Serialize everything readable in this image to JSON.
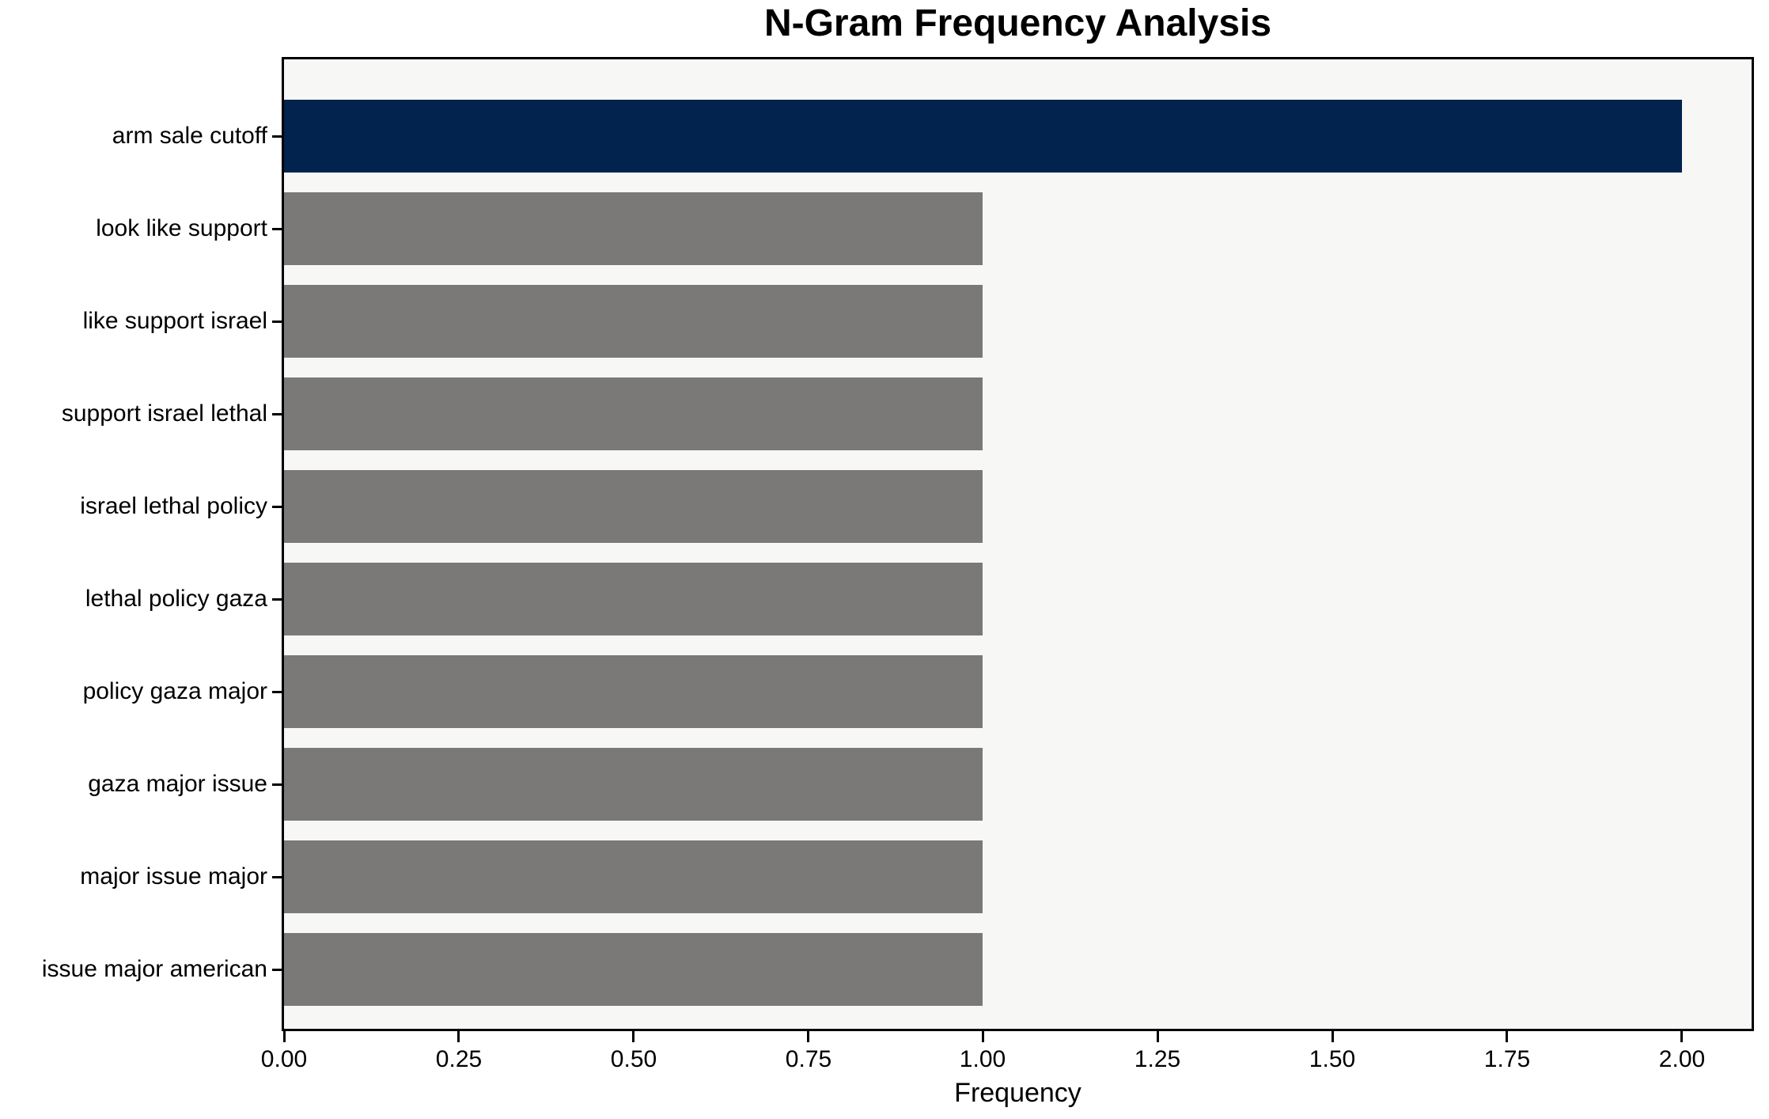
{
  "chart_data": {
    "type": "bar",
    "orientation": "horizontal",
    "title": "N-Gram Frequency Analysis",
    "xlabel": "Frequency",
    "ylabel": "",
    "categories": [
      "arm sale cutoff",
      "look like support",
      "like support israel",
      "support israel lethal",
      "israel lethal policy",
      "lethal policy gaza",
      "policy gaza major",
      "gaza major issue",
      "major issue major",
      "issue major american"
    ],
    "values": [
      2.0,
      1.0,
      1.0,
      1.0,
      1.0,
      1.0,
      1.0,
      1.0,
      1.0,
      1.0
    ],
    "bar_colors": [
      "#02234d",
      "#7a7977",
      "#7a7977",
      "#7a7977",
      "#7a7977",
      "#7a7977",
      "#7a7977",
      "#7a7977",
      "#7a7977",
      "#7a7977"
    ],
    "xlim": [
      0,
      2.1
    ],
    "xticks": [
      0.0,
      0.25,
      0.5,
      0.75,
      1.0,
      1.25,
      1.5,
      1.75,
      2.0
    ],
    "xtick_labels": [
      "0.00",
      "0.25",
      "0.50",
      "0.75",
      "1.00",
      "1.25",
      "1.50",
      "1.75",
      "2.00"
    ],
    "grid": false,
    "legend": null,
    "colors": {
      "highlight_bar": "#02234d",
      "default_bar": "#7a7977",
      "plot_background": "#f7f7f5",
      "figure_background": "#ffffff",
      "axis": "#000000",
      "text": "#000000"
    }
  }
}
